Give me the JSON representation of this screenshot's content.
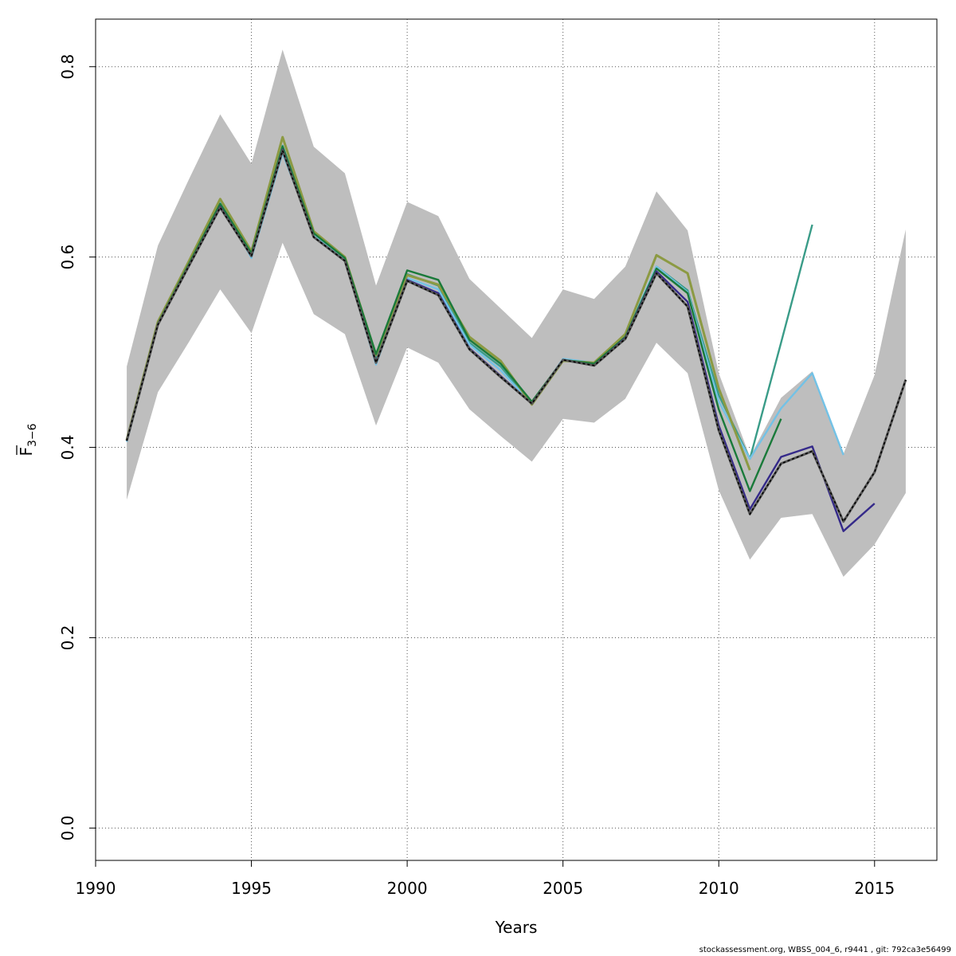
{
  "chart_data": {
    "type": "line",
    "title": "",
    "xlabel": "Years",
    "ylabel": "F",
    "ylabel_sub": "3−6",
    "xlim": [
      1990,
      2017
    ],
    "ylim": [
      -0.034,
      0.85
    ],
    "xticks": [
      1990,
      1995,
      2000,
      2005,
      2010,
      2015
    ],
    "yticks": [
      0.0,
      0.2,
      0.4,
      0.6,
      0.8
    ],
    "ytick_labels": [
      "0.0",
      "0.2",
      "0.4",
      "0.6",
      "0.8"
    ],
    "grid": true,
    "legend": "none",
    "band": {
      "x": [
        1991,
        1992,
        1993,
        1994,
        1995,
        1996,
        1997,
        1998,
        1999,
        2000,
        2001,
        2002,
        2003,
        2004,
        2005,
        2006,
        2007,
        2008,
        2009,
        2010,
        2011,
        2012,
        2013,
        2014,
        2015,
        2016
      ],
      "upper": [
        0.485,
        0.612,
        0.682,
        0.75,
        0.698,
        0.818,
        0.716,
        0.688,
        0.57,
        0.658,
        0.643,
        0.577,
        0.546,
        0.515,
        0.566,
        0.556,
        0.59,
        0.669,
        0.628,
        0.478,
        0.39,
        0.452,
        0.48,
        0.393,
        0.476,
        0.629
      ],
      "lower": [
        0.345,
        0.458,
        0.511,
        0.566,
        0.52,
        0.615,
        0.54,
        0.519,
        0.423,
        0.505,
        0.489,
        0.44,
        0.412,
        0.385,
        0.43,
        0.426,
        0.451,
        0.51,
        0.478,
        0.355,
        0.282,
        0.326,
        0.33,
        0.264,
        0.298,
        0.352
      ],
      "color": "#bebebe"
    },
    "series": [
      {
        "x": [
          1991,
          1992,
          1993,
          1994,
          1995,
          1996,
          1997,
          1998,
          1999,
          2000,
          2001,
          2002,
          2003,
          2004,
          2005,
          2006,
          2007,
          2008,
          2009,
          2010,
          2011,
          2012,
          2013
        ],
        "values": [
          0.407,
          0.531,
          0.594,
          0.659,
          0.602,
          0.717,
          0.625,
          0.598,
          0.494,
          0.582,
          0.57,
          0.51,
          0.485,
          0.446,
          0.492,
          0.488,
          0.515,
          0.59,
          0.565,
          0.455,
          0.388,
          0.51,
          0.634
        ],
        "color": "#3a9c88",
        "width": 2.4
      },
      {
        "x": [
          1991,
          1992,
          1993,
          1994,
          1995,
          1996,
          1997,
          1998,
          1999,
          2000,
          2001,
          2002,
          2003,
          2004,
          2005,
          2006,
          2007,
          2008,
          2009,
          2010,
          2011,
          2012,
          2013,
          2014
        ],
        "values": [
          0.406,
          0.53,
          0.592,
          0.658,
          0.599,
          0.709,
          0.624,
          0.597,
          0.487,
          0.578,
          0.566,
          0.508,
          0.481,
          0.446,
          0.493,
          0.489,
          0.517,
          0.59,
          0.563,
          0.448,
          0.388,
          0.441,
          0.478,
          0.392
        ],
        "color": "#73c2e6",
        "width": 2.4
      },
      {
        "x": [
          1991,
          1992,
          1993,
          1994,
          1995,
          1996,
          1997,
          1998,
          1999,
          2000,
          2001,
          2002,
          2003,
          2004,
          2005,
          2006,
          2007,
          2008,
          2009,
          2010,
          2011
        ],
        "values": [
          0.408,
          0.532,
          0.596,
          0.661,
          0.606,
          0.726,
          0.627,
          0.6,
          0.497,
          0.581,
          0.571,
          0.516,
          0.491,
          0.445,
          0.491,
          0.489,
          0.519,
          0.602,
          0.583,
          0.462,
          0.376
        ],
        "color": "#8c9a43",
        "width": 3.0
      },
      {
        "x": [
          1991,
          1992,
          1993,
          1994,
          1995,
          1996,
          1997,
          1998,
          1999,
          2000,
          2001,
          2002,
          2003,
          2004,
          2005,
          2006,
          2007,
          2008,
          2009,
          2010,
          2011,
          2012
        ],
        "values": [
          0.407,
          0.53,
          0.593,
          0.656,
          0.604,
          0.716,
          0.625,
          0.599,
          0.498,
          0.586,
          0.576,
          0.513,
          0.488,
          0.448,
          0.492,
          0.488,
          0.516,
          0.588,
          0.562,
          0.44,
          0.354,
          0.43
        ],
        "color": "#1a7a3a",
        "width": 2.4
      },
      {
        "x": [
          1991,
          1992,
          1993,
          1994,
          1995,
          1996,
          1997,
          1998,
          1999,
          2000,
          2001,
          2002,
          2003,
          2004,
          2005,
          2006,
          2007,
          2008,
          2009,
          2010,
          2011,
          2012,
          2013,
          2014,
          2015
        ],
        "values": [
          0.407,
          0.529,
          0.591,
          0.653,
          0.601,
          0.713,
          0.621,
          0.596,
          0.49,
          0.576,
          0.562,
          0.504,
          0.475,
          0.446,
          0.492,
          0.486,
          0.515,
          0.585,
          0.553,
          0.423,
          0.335,
          0.39,
          0.401,
          0.312,
          0.341
        ],
        "color": "#352a8a",
        "width": 2.4
      },
      {
        "x": [
          1991,
          1992,
          1993,
          1994,
          1995,
          1996,
          1997,
          1998,
          1999,
          2000,
          2001,
          2002,
          2003,
          2004,
          2005,
          2006,
          2007,
          2008,
          2009,
          2010,
          2011,
          2012,
          2013,
          2014,
          2015,
          2016
        ],
        "values": [
          0.407,
          0.529,
          0.591,
          0.652,
          0.601,
          0.712,
          0.621,
          0.596,
          0.489,
          0.575,
          0.56,
          0.503,
          0.474,
          0.446,
          0.492,
          0.486,
          0.514,
          0.583,
          0.548,
          0.418,
          0.33,
          0.383,
          0.396,
          0.322,
          0.374,
          0.471
        ],
        "color": "#555555",
        "width": 3.0,
        "overlay_dash": true
      }
    ]
  },
  "footer_text": "stockassessment.org, WBSS_004_6, r9441 , git: 792ca3e56499"
}
